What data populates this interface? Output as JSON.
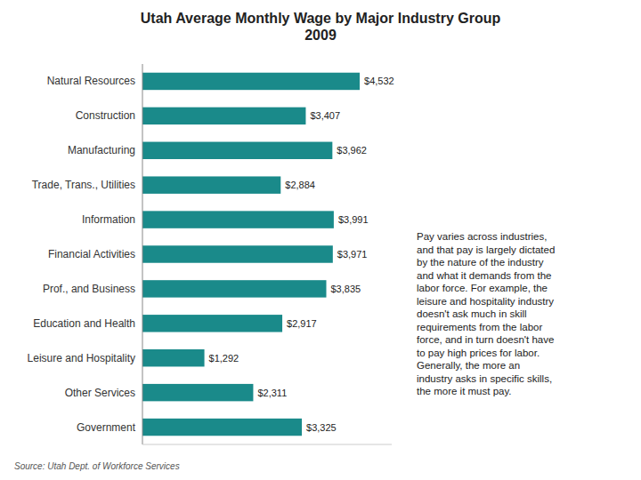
{
  "chart_data": {
    "type": "bar",
    "orientation": "horizontal",
    "title": "Utah Average Monthly Wage by Major Industry Group\n2009",
    "categories": [
      "Natural Resources",
      "Construction",
      "Manufacturing",
      "Trade, Trans., Utilities",
      "Information",
      "Financial Activities",
      "Prof., and Business",
      "Education and Health",
      "Leisure and Hospitality",
      "Other Services",
      "Government"
    ],
    "values": [
      4532,
      3407,
      3962,
      2884,
      3991,
      3971,
      3835,
      2917,
      1292,
      2311,
      3325
    ],
    "value_labels": [
      "$4,532",
      "$3,407",
      "$3,962",
      "$2,884",
      "$3,991",
      "$3,971",
      "$3,835",
      "$2,917",
      "$1,292",
      "$2,311",
      "$3,325"
    ],
    "data_labels": true,
    "color": "#1a8a8a",
    "xlim": [
      0,
      5200
    ],
    "tick_labels": "y",
    "grid": false,
    "annotations": [
      "Pay varies across industries,\nand that pay is largely dictated\nby the nature of the industry\nand what it demands from the\nlabor force. For example, the\nleisure and hospitality industry\ndoesn't ask much in skill\nrequirements from the labor\nforce, and in turn doesn't have\nto pay high prices for labor.\nGenerally, the more an\nindustry asks in specific skills,\nthe more it must pay.",
      "Source: Utah Dept. of Workforce Services"
    ]
  }
}
